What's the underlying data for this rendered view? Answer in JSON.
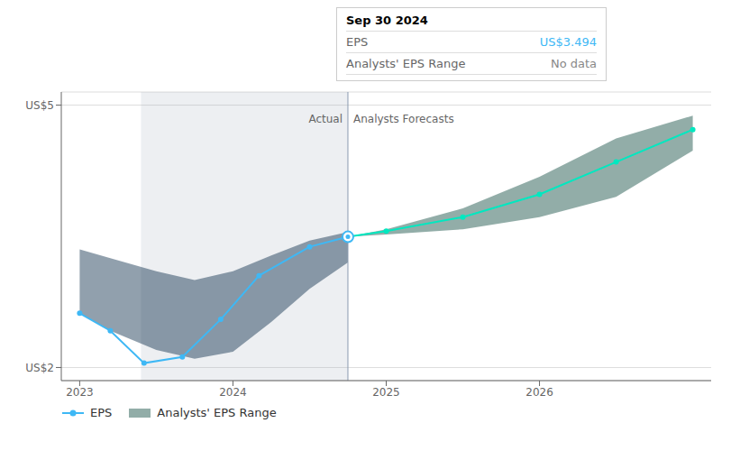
{
  "chart_data": {
    "type": "line",
    "xlim": [
      2022.88,
      2027.12
    ],
    "xticks": [
      2023,
      2024,
      2025,
      2026
    ],
    "ylim": [
      1.85,
      5.15
    ],
    "yticks": [
      {
        "value": 2.0,
        "label": "US$2"
      },
      {
        "value": 5.0,
        "label": "US$5"
      }
    ],
    "grid": true,
    "legend": "bottom",
    "series": [
      {
        "name": "EPS",
        "type": "line",
        "color": "#3eb8f5",
        "marker": "circle",
        "x": [
          2023.0,
          2023.2,
          2023.42,
          2023.67,
          2023.92,
          2024.17,
          2024.5,
          2024.75
        ],
        "values": [
          2.62,
          2.42,
          2.05,
          2.12,
          2.55,
          3.05,
          3.38,
          3.494
        ]
      },
      {
        "type": "line",
        "color": "#00e8c0",
        "marker": "circle",
        "x": [
          2024.75,
          2025.0,
          2025.5,
          2026.0,
          2026.5,
          2027.0
        ],
        "values": [
          3.494,
          3.56,
          3.72,
          3.98,
          4.35,
          4.72
        ]
      },
      {
        "type": "band",
        "color": "#0a2d4a",
        "x": [
          2023.0,
          2023.2,
          2023.5,
          2023.75,
          2024.0,
          2024.25,
          2024.5,
          2024.75
        ],
        "upper": [
          3.35,
          3.25,
          3.1,
          3.0,
          3.1,
          3.28,
          3.45,
          3.55
        ],
        "lower": [
          2.62,
          2.42,
          2.2,
          2.1,
          2.18,
          2.52,
          2.9,
          3.2
        ]
      },
      {
        "name": "Analysts' EPS Range",
        "type": "band",
        "color": "#0d4a3e",
        "x": [
          2024.75,
          2025.0,
          2025.5,
          2026.0,
          2026.5,
          2027.0
        ],
        "upper": [
          3.494,
          3.58,
          3.82,
          4.18,
          4.62,
          4.88
        ],
        "lower": [
          3.494,
          3.52,
          3.58,
          3.72,
          3.95,
          4.48
        ]
      }
    ],
    "shaded_x": [
      2023.4,
      2024.75
    ],
    "annotations": [
      {
        "text": "Actual",
        "x": 2024.75
      },
      {
        "text": "Analysts Forecasts",
        "x": 2024.75
      }
    ],
    "tooltip": {
      "title": "Sep 30 2024",
      "rows": [
        {
          "label": "EPS",
          "value": "US$3.494",
          "color": "#3eb8f5"
        },
        {
          "label": "Analysts' EPS Range",
          "value": "No data",
          "color": "#888888"
        }
      ]
    }
  }
}
